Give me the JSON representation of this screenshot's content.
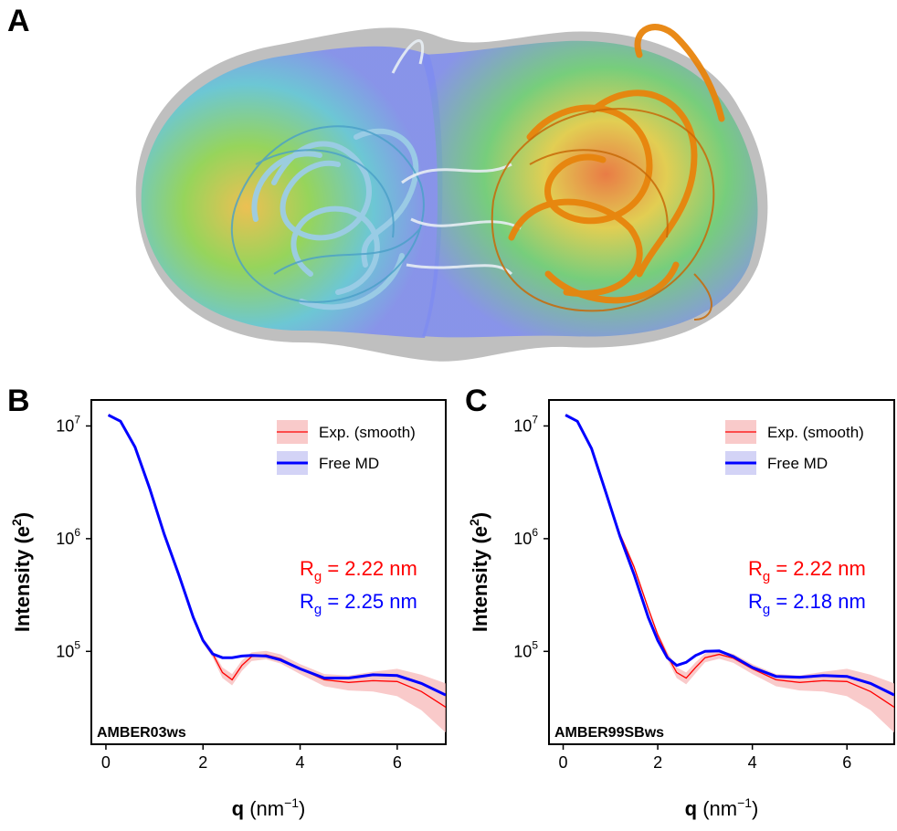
{
  "panels": {
    "a_label": "A",
    "b_label": "B",
    "c_label": "C"
  },
  "colors": {
    "experimental": "#ff0000",
    "experimental_band": "#f7b8b8",
    "free_md": "#0000ff",
    "free_md_band": "#c8c8f4",
    "domain_left": "#a8d4ea",
    "domain_right": "#e8840c",
    "envelope": "#7f8cf0"
  },
  "chart_data": [
    {
      "type": "line",
      "panel": "B",
      "xlabel": "q",
      "xlabel_unit": "(nm",
      "xlabel_unit_sup": "−1",
      "xlabel_unit_close": ")",
      "ylabel": "Intensity (e",
      "ylabel_sup": "2",
      "ylabel_close": ")",
      "y_scale": "log",
      "xlim": [
        -0.3,
        7.0
      ],
      "ylim": [
        15000,
        17000000
      ],
      "x_ticks": [
        0,
        2,
        4,
        6
      ],
      "y_ticks": [
        {
          "value": 100000,
          "base": "10",
          "exp": "5"
        },
        {
          "value": 1000000,
          "base": "10",
          "exp": "6"
        },
        {
          "value": 10000000,
          "base": "10",
          "exp": "7"
        }
      ],
      "legend": [
        "Exp. (smooth)",
        "Free MD"
      ],
      "legend_position": "top-right",
      "rg_exp": {
        "prefix": "R",
        "sub": "g",
        "text": " = 2.22 nm"
      },
      "rg_md": {
        "prefix": "R",
        "sub": "g",
        "text": " = 2.25 nm"
      },
      "force_field": "AMBER03ws",
      "series": [
        {
          "name": "Exp. (smooth)",
          "x": [
            0.05,
            0.3,
            0.6,
            0.9,
            1.2,
            1.5,
            1.8,
            2.0,
            2.2,
            2.4,
            2.6,
            2.8,
            3.0,
            3.3,
            3.6,
            4.0,
            4.5,
            5.0,
            5.5,
            6.0,
            6.5,
            7.0
          ],
          "values": [
            12500000,
            11000000,
            6500000,
            2800000,
            1100000,
            480000,
            200000,
            125000,
            95000,
            65000,
            56000,
            75000,
            90000,
            93000,
            86000,
            70000,
            56000,
            53000,
            55000,
            54000,
            44000,
            32000
          ],
          "band_low": [
            12300000,
            10800000,
            6300000,
            2700000,
            1060000,
            460000,
            190000,
            118000,
            88000,
            58000,
            50000,
            67000,
            82000,
            85000,
            78000,
            63000,
            49000,
            45000,
            44000,
            40000,
            30000,
            19000
          ],
          "band_high": [
            12700000,
            11200000,
            6700000,
            2900000,
            1140000,
            500000,
            210000,
            132000,
            102000,
            72000,
            63000,
            83000,
            98000,
            101000,
            94000,
            77000,
            63000,
            61000,
            66000,
            70000,
            62000,
            52000
          ]
        },
        {
          "name": "Free MD",
          "x": [
            0.05,
            0.3,
            0.6,
            0.9,
            1.2,
            1.5,
            1.8,
            2.0,
            2.2,
            2.4,
            2.6,
            2.8,
            3.0,
            3.3,
            3.6,
            4.0,
            4.5,
            5.0,
            5.5,
            6.0,
            6.5,
            7.0
          ],
          "values": [
            12500000,
            11000000,
            6500000,
            2800000,
            1100000,
            480000,
            200000,
            125000,
            95000,
            88000,
            88000,
            91000,
            92000,
            91000,
            84000,
            70000,
            58000,
            58000,
            62000,
            61000,
            52000,
            41000
          ]
        }
      ]
    },
    {
      "type": "line",
      "panel": "C",
      "xlabel": "q",
      "xlabel_unit": "(nm",
      "xlabel_unit_sup": "−1",
      "xlabel_unit_close": ")",
      "ylabel": "Intensity (e",
      "ylabel_sup": "2",
      "ylabel_close": ")",
      "y_scale": "log",
      "xlim": [
        -0.3,
        7.0
      ],
      "ylim": [
        15000,
        17000000
      ],
      "x_ticks": [
        0,
        2,
        4,
        6
      ],
      "y_ticks": [
        {
          "value": 100000,
          "base": "10",
          "exp": "5"
        },
        {
          "value": 1000000,
          "base": "10",
          "exp": "6"
        },
        {
          "value": 10000000,
          "base": "10",
          "exp": "7"
        }
      ],
      "legend": [
        "Exp. (smooth)",
        "Free MD"
      ],
      "legend_position": "top-right",
      "rg_exp": {
        "prefix": "R",
        "sub": "g",
        "text": " = 2.22 nm"
      },
      "rg_md": {
        "prefix": "R",
        "sub": "g",
        "text": " = 2.18 nm"
      },
      "force_field": "AMBER99SBws",
      "series": [
        {
          "name": "Exp. (smooth)",
          "x": [
            0.05,
            0.3,
            0.6,
            0.9,
            1.2,
            1.5,
            1.8,
            2.0,
            2.2,
            2.4,
            2.6,
            2.8,
            3.0,
            3.3,
            3.6,
            4.0,
            4.5,
            5.0,
            5.5,
            6.0,
            6.5,
            7.0
          ],
          "values": [
            12500000,
            11000000,
            6300000,
            2600000,
            1100000,
            560000,
            240000,
            140000,
            92000,
            65000,
            58000,
            72000,
            88000,
            94000,
            87000,
            70000,
            56000,
            53000,
            55000,
            54000,
            44000,
            32000
          ],
          "band_low": [
            12300000,
            10800000,
            6100000,
            2500000,
            1060000,
            530000,
            228000,
            132000,
            85000,
            58000,
            51000,
            64000,
            80000,
            86000,
            79000,
            63000,
            49000,
            45000,
            44000,
            40000,
            30000,
            19000
          ],
          "band_high": [
            12700000,
            11200000,
            6500000,
            2700000,
            1140000,
            590000,
            252000,
            148000,
            99000,
            72000,
            65000,
            80000,
            96000,
            102000,
            95000,
            77000,
            63000,
            61000,
            66000,
            70000,
            62000,
            52000
          ]
        },
        {
          "name": "Free MD",
          "x": [
            0.05,
            0.3,
            0.6,
            0.9,
            1.2,
            1.5,
            1.8,
            2.0,
            2.2,
            2.4,
            2.6,
            2.8,
            3.0,
            3.3,
            3.6,
            4.0,
            4.5,
            5.0,
            5.5,
            6.0,
            6.5,
            7.0
          ],
          "values": [
            12500000,
            11000000,
            6300000,
            2600000,
            1050000,
            480000,
            200000,
            125000,
            88000,
            75000,
            80000,
            92000,
            100000,
            101000,
            90000,
            72000,
            60000,
            59000,
            61000,
            60000,
            52000,
            41000
          ]
        }
      ]
    }
  ]
}
